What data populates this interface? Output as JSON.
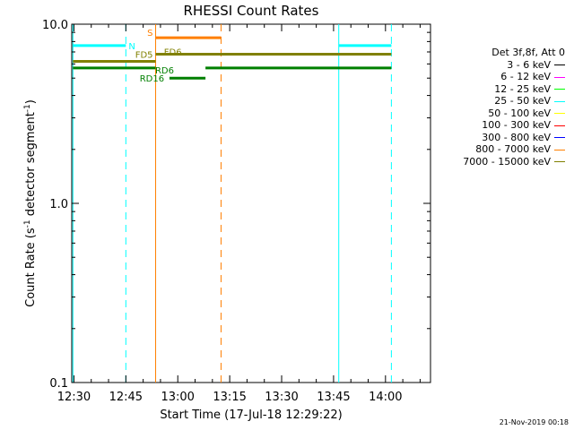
{
  "chart_data": {
    "type": "line",
    "title": "RHESSI Count Rates",
    "xlabel": "Start Time (17-Jul-18 12:29:22)",
    "ylabel_parts": [
      "Count Rate (s",
      "-1",
      " detector segment",
      "-1",
      ")"
    ],
    "y_scale": "log",
    "ylim": [
      0.1,
      10.0
    ],
    "xlim_minutes": [
      749.37,
      853.0
    ],
    "x_ticks": [
      {
        "t": 750,
        "label": "12:30"
      },
      {
        "t": 765,
        "label": "12:45"
      },
      {
        "t": 780,
        "label": "13:00"
      },
      {
        "t": 795,
        "label": "13:15"
      },
      {
        "t": 810,
        "label": "13:30"
      },
      {
        "t": 825,
        "label": "13:45"
      },
      {
        "t": 840,
        "label": "14:00"
      }
    ],
    "y_ticks": [
      {
        "v": 0.1,
        "label": "0.1"
      },
      {
        "v": 1.0,
        "label": "1.0"
      },
      {
        "v": 10.0,
        "label": "10.0"
      }
    ],
    "vertical_lines": [
      {
        "t": 749.7,
        "color": "#00ffff",
        "style": "solid"
      },
      {
        "t": 765.0,
        "color": "#00ffff",
        "style": "dashed"
      },
      {
        "t": 773.6,
        "color": "#ff7f00",
        "style": "solid"
      },
      {
        "t": 792.5,
        "color": "#ff7f00",
        "style": "dashed"
      },
      {
        "t": 826.5,
        "color": "#00ffff",
        "style": "solid"
      },
      {
        "t": 841.7,
        "color": "#00ffff",
        "style": "dashed"
      }
    ],
    "flag_bars": [
      {
        "label": "N",
        "t0": 749.7,
        "t1": 765.0,
        "y": 7.6,
        "color": "#00ffff"
      },
      {
        "label": "",
        "t0": 826.5,
        "t1": 841.7,
        "y": 7.6,
        "color": "#00ffff"
      },
      {
        "label": "S",
        "t0": 773.6,
        "t1": 792.5,
        "y": 8.4,
        "color": "#ff7f00"
      },
      {
        "label": "FD5",
        "t0": 749.7,
        "t1": 773.6,
        "y": 6.2,
        "color": "#808000"
      },
      {
        "label": "FD6",
        "t0": 773.6,
        "t1": 841.7,
        "y": 6.8,
        "color": "#808000"
      },
      {
        "label": "RD16",
        "t0": 749.7,
        "t1": 773.6,
        "y": 5.7,
        "color": "#007f00"
      },
      {
        "label": "RD6",
        "t0": 777.6,
        "t1": 788.0,
        "y": 5.0,
        "color": "#007f00"
      },
      {
        "label": "",
        "t0": 788.0,
        "t1": 841.7,
        "y": 5.7,
        "color": "#007f00"
      }
    ],
    "legend": {
      "header": "Det 3f,8f, Att 0",
      "entries": [
        {
          "label": "3 - 6 keV",
          "color": "#000000"
        },
        {
          "label": "6 - 12 keV",
          "color": "#ff00ff"
        },
        {
          "label": "12 - 25 keV",
          "color": "#00ff00"
        },
        {
          "label": "25 - 50 keV",
          "color": "#00ffff"
        },
        {
          "label": "50 - 100 keV",
          "color": "#ffff00"
        },
        {
          "label": "100 - 300 keV",
          "color": "#ff0000"
        },
        {
          "label": "300 - 800 keV",
          "color": "#0000ff"
        },
        {
          "label": "800 - 7000 keV",
          "color": "#ff7f00"
        },
        {
          "label": "7000 - 15000 keV",
          "color": "#808000"
        }
      ]
    },
    "footer": "21-Nov-2019 00:18"
  }
}
